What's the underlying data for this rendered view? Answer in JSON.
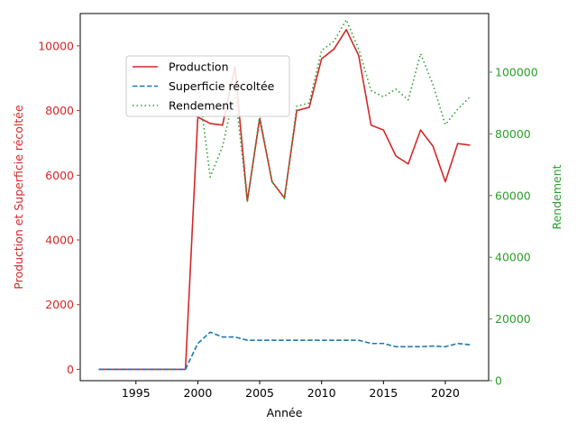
{
  "chart_data": {
    "type": "line",
    "x": [
      1992,
      1993,
      1994,
      1995,
      1996,
      1997,
      1998,
      1999,
      2000,
      2001,
      2002,
      2003,
      2004,
      2005,
      2006,
      2007,
      2008,
      2009,
      2010,
      2011,
      2012,
      2013,
      2014,
      2015,
      2016,
      2017,
      2018,
      2019,
      2020,
      2021,
      2022
    ],
    "series": [
      {
        "name": "Production",
        "axis": "left",
        "color": "#d62728",
        "style": "solid",
        "values": [
          0,
          0,
          0,
          0,
          0,
          0,
          0,
          0,
          7800,
          7600,
          7550,
          9350,
          5200,
          7750,
          5800,
          5300,
          8000,
          8100,
          9600,
          9900,
          10500,
          9700,
          7550,
          7400,
          6600,
          6350,
          7400,
          6900,
          5800,
          6980,
          6930
        ]
      },
      {
        "name": "Superficie récoltée",
        "axis": "left",
        "color": "#1f77b4",
        "style": "dashed",
        "values": [
          0,
          0,
          0,
          0,
          0,
          0,
          0,
          0,
          800,
          1150,
          1000,
          1000,
          900,
          900,
          900,
          900,
          900,
          900,
          900,
          900,
          900,
          900,
          800,
          800,
          700,
          700,
          700,
          720,
          700,
          800,
          760
        ]
      },
      {
        "name": "Rendement",
        "axis": "right",
        "color": "#2ca02c",
        "style": "dotted",
        "values": [
          null,
          null,
          null,
          null,
          null,
          null,
          null,
          null,
          97500,
          66000,
          76000,
          94000,
          58000,
          86000,
          64500,
          59000,
          89000,
          90000,
          107000,
          110000,
          117000,
          107500,
          94000,
          92000,
          94500,
          91000,
          106000,
          96000,
          83000,
          88000,
          92000
        ]
      }
    ],
    "xlabel": "Année",
    "ylabel": "Production et Superficie récoltée",
    "ylabel_right": "Rendement",
    "xlim": [
      1990.5,
      2023.5
    ],
    "ylim": [
      -350,
      11000
    ],
    "ylim_right": [
      0,
      119000
    ],
    "xticks": [
      1995,
      2000,
      2005,
      2010,
      2015,
      2020
    ],
    "yticks": [
      0,
      2000,
      4000,
      6000,
      8000,
      10000
    ],
    "yticks_right": [
      0,
      20000,
      40000,
      60000,
      80000,
      100000
    ],
    "left_color": "#d62728",
    "right_color": "#2ca02c",
    "grid": false,
    "legend_position": "upper-left"
  }
}
